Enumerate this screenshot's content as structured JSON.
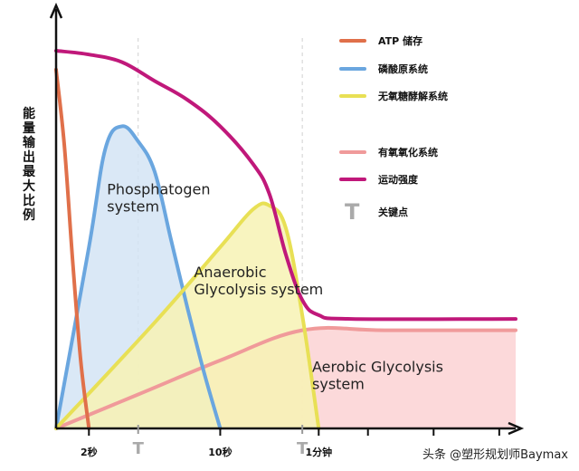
{
  "chart_data": {
    "type": "area",
    "title": "",
    "ylabel": "能量输出最大比例",
    "xlabel": "",
    "x_ticks": [
      {
        "label": "2秒",
        "x": 2
      },
      {
        "label": "T",
        "x": 5
      },
      {
        "label": "10秒",
        "x": 10
      },
      {
        "label": "T",
        "x": 15
      },
      {
        "label": "1分钟",
        "x": 16
      }
    ],
    "xlim": [
      0,
      28
    ],
    "ylim": [
      0,
      1
    ],
    "grid": false,
    "legend_position": "top-right",
    "series": [
      {
        "name": "ATP 储存",
        "color": "#e0704a",
        "fill": false,
        "x": [
          0,
          0.5,
          1,
          1.5,
          2
        ],
        "y": [
          0.95,
          0.75,
          0.45,
          0.18,
          0
        ]
      },
      {
        "name": "磷酸原系统",
        "color": "#6aa6df",
        "fill": "#d3e4f5",
        "x": [
          0,
          2,
          3,
          4,
          5,
          6,
          7,
          8,
          9,
          10
        ],
        "y": [
          0,
          0.48,
          0.74,
          0.8,
          0.76,
          0.68,
          0.5,
          0.32,
          0.15,
          0
        ]
      },
      {
        "name": "无氧糖酵解系统",
        "color": "#e8e055",
        "fill": "#f7f2b4",
        "x": [
          0,
          6,
          10,
          12,
          13,
          14,
          15,
          16
        ],
        "y": [
          0,
          0.28,
          0.48,
          0.58,
          0.59,
          0.53,
          0.3,
          0
        ]
      },
      {
        "name": "有氧氧化系统",
        "color": "#f09a9a",
        "fill": "#fbd2d3",
        "x": [
          0,
          5,
          10,
          15,
          20,
          28
        ],
        "y": [
          0,
          0.09,
          0.18,
          0.26,
          0.26,
          0.26
        ]
      },
      {
        "name": "运动强度",
        "color": "#c0187a",
        "fill": false,
        "x": [
          0,
          2,
          4,
          6,
          8,
          10,
          12,
          13,
          14,
          15,
          16,
          18,
          28
        ],
        "y": [
          1.0,
          0.99,
          0.97,
          0.92,
          0.87,
          0.8,
          0.7,
          0.62,
          0.46,
          0.34,
          0.3,
          0.29,
          0.29
        ]
      }
    ],
    "key_points": {
      "symbol": "T",
      "label": "关键点",
      "x": [
        5,
        15
      ]
    },
    "annotations": [
      {
        "text": "Phosphatogen\nsystem",
        "x": 3.1,
        "y": 0.62
      },
      {
        "text": "Anaerobic\nGlycolysis system",
        "x": 8.4,
        "y": 0.4
      },
      {
        "text": "Aerobic Glycolysis\nsystem",
        "x": 15.6,
        "y": 0.15
      }
    ],
    "colors": {
      "axis": "#111111",
      "key_point": "#aaaaaa"
    }
  },
  "watermark": "头条 @塑形规划师Baymax"
}
